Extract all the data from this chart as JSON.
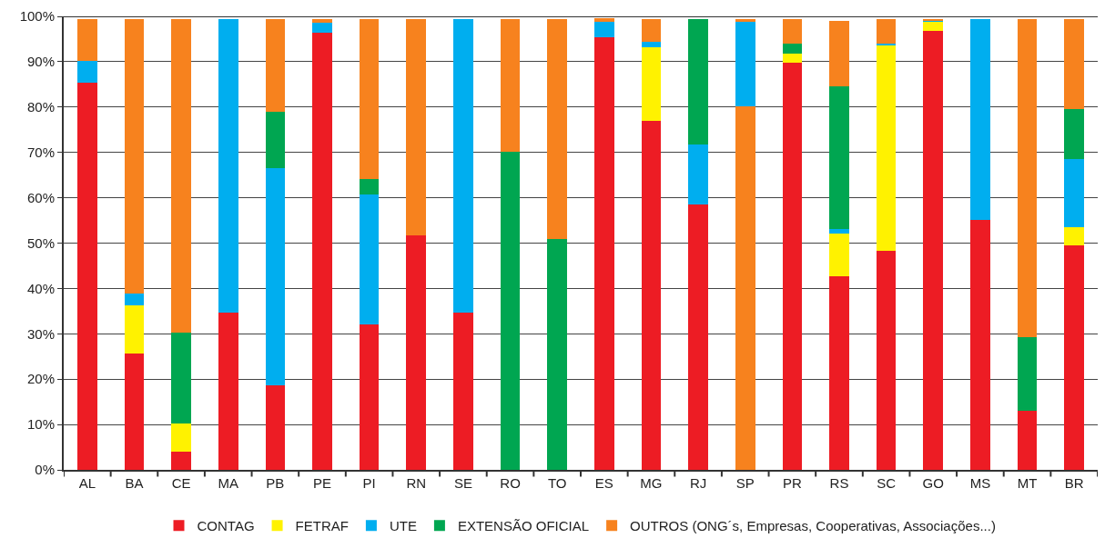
{
  "chart_data": {
    "type": "bar",
    "stacked": true,
    "categories": [
      "AL",
      "BA",
      "CE",
      "MA",
      "PB",
      "PE",
      "PI",
      "RN",
      "SE",
      "RO",
      "TO",
      "ES",
      "MG",
      "RJ",
      "SP",
      "PR",
      "RS",
      "SC",
      "GO",
      "MS",
      "MT",
      "BR"
    ],
    "series": [
      {
        "color": "#f7821e",
        "values": [
          null,
          null,
          null,
          null,
          null,
          null,
          null,
          null,
          null,
          null,
          null,
          null,
          null,
          null,
          80.1,
          null,
          null,
          null,
          null,
          null,
          null,
          null
        ]
      },
      {
        "name": "CONTAG",
        "color": "#ed1c24",
        "values": [
          85.4,
          25.7,
          4.1,
          34.7,
          18.7,
          96.3,
          32,
          51.7,
          34.7,
          0,
          0,
          95.4,
          77,
          58.6,
          0,
          89.7,
          42.7,
          48.3,
          96.8,
          55.2,
          13.1,
          49.5
        ]
      },
      {
        "name": "FETRAF",
        "color": "#fff200",
        "values": [
          0,
          10.5,
          6.1,
          0,
          0,
          0,
          0,
          0,
          0,
          0,
          0,
          0,
          16.2,
          0,
          0,
          2.1,
          9.5,
          45.4,
          2,
          0,
          0,
          4.1
        ]
      },
      {
        "name": "UTE",
        "color": "#00aeef",
        "values": [
          4.8,
          2.6,
          0,
          64.8,
          47.8,
          2.2,
          28.7,
          0,
          64.8,
          0,
          0,
          3.4,
          1.2,
          13.2,
          18.7,
          0,
          0.9,
          0.3,
          0.3,
          44.3,
          0,
          14.9
        ]
      },
      {
        "name": "EXTENSÃO OFICIAL",
        "color": "#00a651",
        "values": [
          0,
          0,
          20.1,
          0,
          12.4,
          0,
          3.4,
          0,
          0,
          70.2,
          51,
          0,
          0,
          27.7,
          0,
          2.1,
          31.4,
          0,
          0,
          0,
          16.2,
          11.1
        ]
      },
      {
        "name": "OUTROS (ONG´s, Empresas, Cooperativas, Associações...)",
        "color": "#f7821e",
        "values": [
          9.3,
          60.7,
          69.2,
          0,
          20.6,
          1,
          35.4,
          47.8,
          0,
          29.3,
          48.5,
          0.7,
          5.1,
          0,
          0.5,
          5.6,
          14.5,
          5.5,
          0.4,
          0,
          70.2,
          19.9
        ]
      }
    ],
    "ylim": [
      0,
      100
    ],
    "yticks": [
      {
        "value": 0,
        "label": "0%"
      },
      {
        "value": 10,
        "label": "10%"
      },
      {
        "value": 20,
        "label": "20%"
      },
      {
        "value": 30,
        "label": "30%"
      },
      {
        "value": 40,
        "label": "40%"
      },
      {
        "value": 50,
        "label": "50%"
      },
      {
        "value": 60,
        "label": "60%"
      },
      {
        "value": 70,
        "label": "70%"
      },
      {
        "value": 80,
        "label": "80%"
      },
      {
        "value": 90,
        "label": "90%"
      },
      {
        "value": 100,
        "label": "100%"
      }
    ],
    "grid": "y",
    "legend": "bottom"
  }
}
